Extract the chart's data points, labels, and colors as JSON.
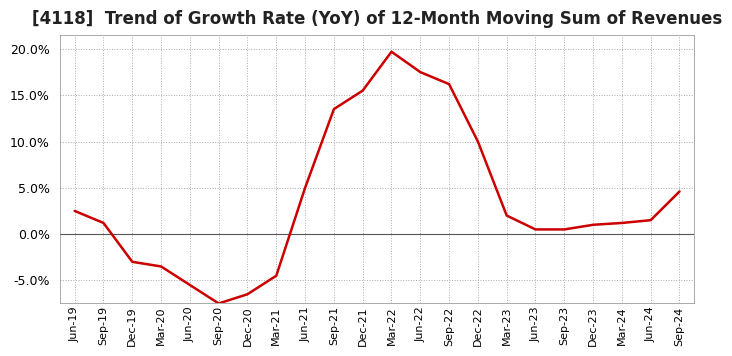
{
  "title": "[4118]  Trend of Growth Rate (YoY) of 12-Month Moving Sum of Revenues",
  "line_color": "#cc0000",
  "background_color": "#ffffff",
  "grid_color": "#aaaaaa",
  "ylim": [
    -0.075,
    0.215
  ],
  "yticks": [
    -0.05,
    0.0,
    0.05,
    0.1,
    0.15,
    0.2
  ],
  "dates": [
    "Jun-19",
    "Sep-19",
    "Dec-19",
    "Mar-20",
    "Jun-20",
    "Sep-20",
    "Dec-20",
    "Mar-21",
    "Jun-21",
    "Sep-21",
    "Dec-21",
    "Mar-22",
    "Jun-22",
    "Sep-22",
    "Dec-22",
    "Mar-23",
    "Jun-23",
    "Sep-23",
    "Dec-23",
    "Mar-24",
    "Jun-24",
    "Sep-24"
  ],
  "values": [
    0.025,
    0.012,
    -0.03,
    -0.035,
    -0.055,
    -0.075,
    -0.065,
    -0.045,
    0.05,
    0.135,
    0.155,
    0.197,
    0.175,
    0.162,
    0.1,
    0.02,
    0.005,
    0.005,
    0.01,
    0.012,
    0.015,
    0.046
  ],
  "title_fontsize": 12,
  "xlabel_fontsize": 8,
  "ylabel_fontsize": 9,
  "line_width": 1.8,
  "zero_line_color": "#555555",
  "spine_color": "#888888"
}
